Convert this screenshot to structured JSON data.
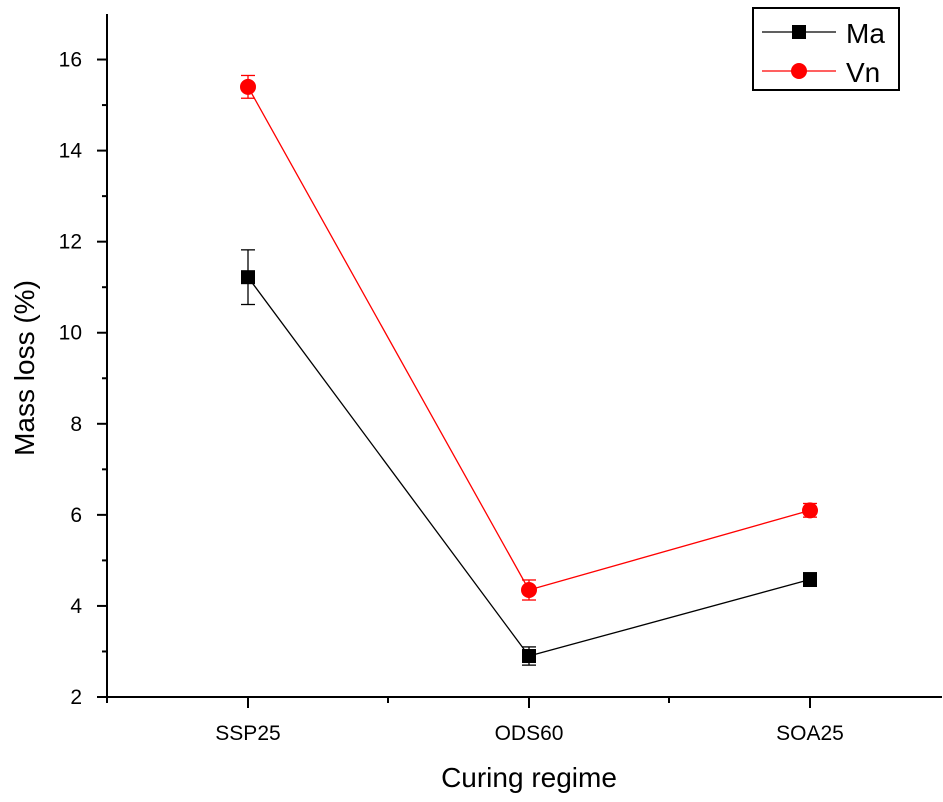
{
  "chart_data": {
    "type": "line",
    "title": "",
    "xlabel": "Curing regime",
    "ylabel": "Mass loss (%)",
    "categories": [
      "SSP25",
      "ODS60",
      "SOA25"
    ],
    "ylim": [
      2,
      17
    ],
    "yticks": [
      2,
      4,
      6,
      8,
      10,
      12,
      14,
      16
    ],
    "grid": false,
    "legend_position": "top-right",
    "series": [
      {
        "name": "Ma",
        "color": "#000000",
        "marker": "square",
        "values": [
          11.22,
          2.9,
          4.58
        ],
        "errors": [
          0.6,
          0.2,
          0.15
        ]
      },
      {
        "name": "Vn",
        "color": "#ff0000",
        "marker": "circle",
        "values": [
          15.4,
          4.35,
          6.1
        ],
        "errors": [
          0.25,
          0.22,
          0.15
        ]
      }
    ]
  }
}
